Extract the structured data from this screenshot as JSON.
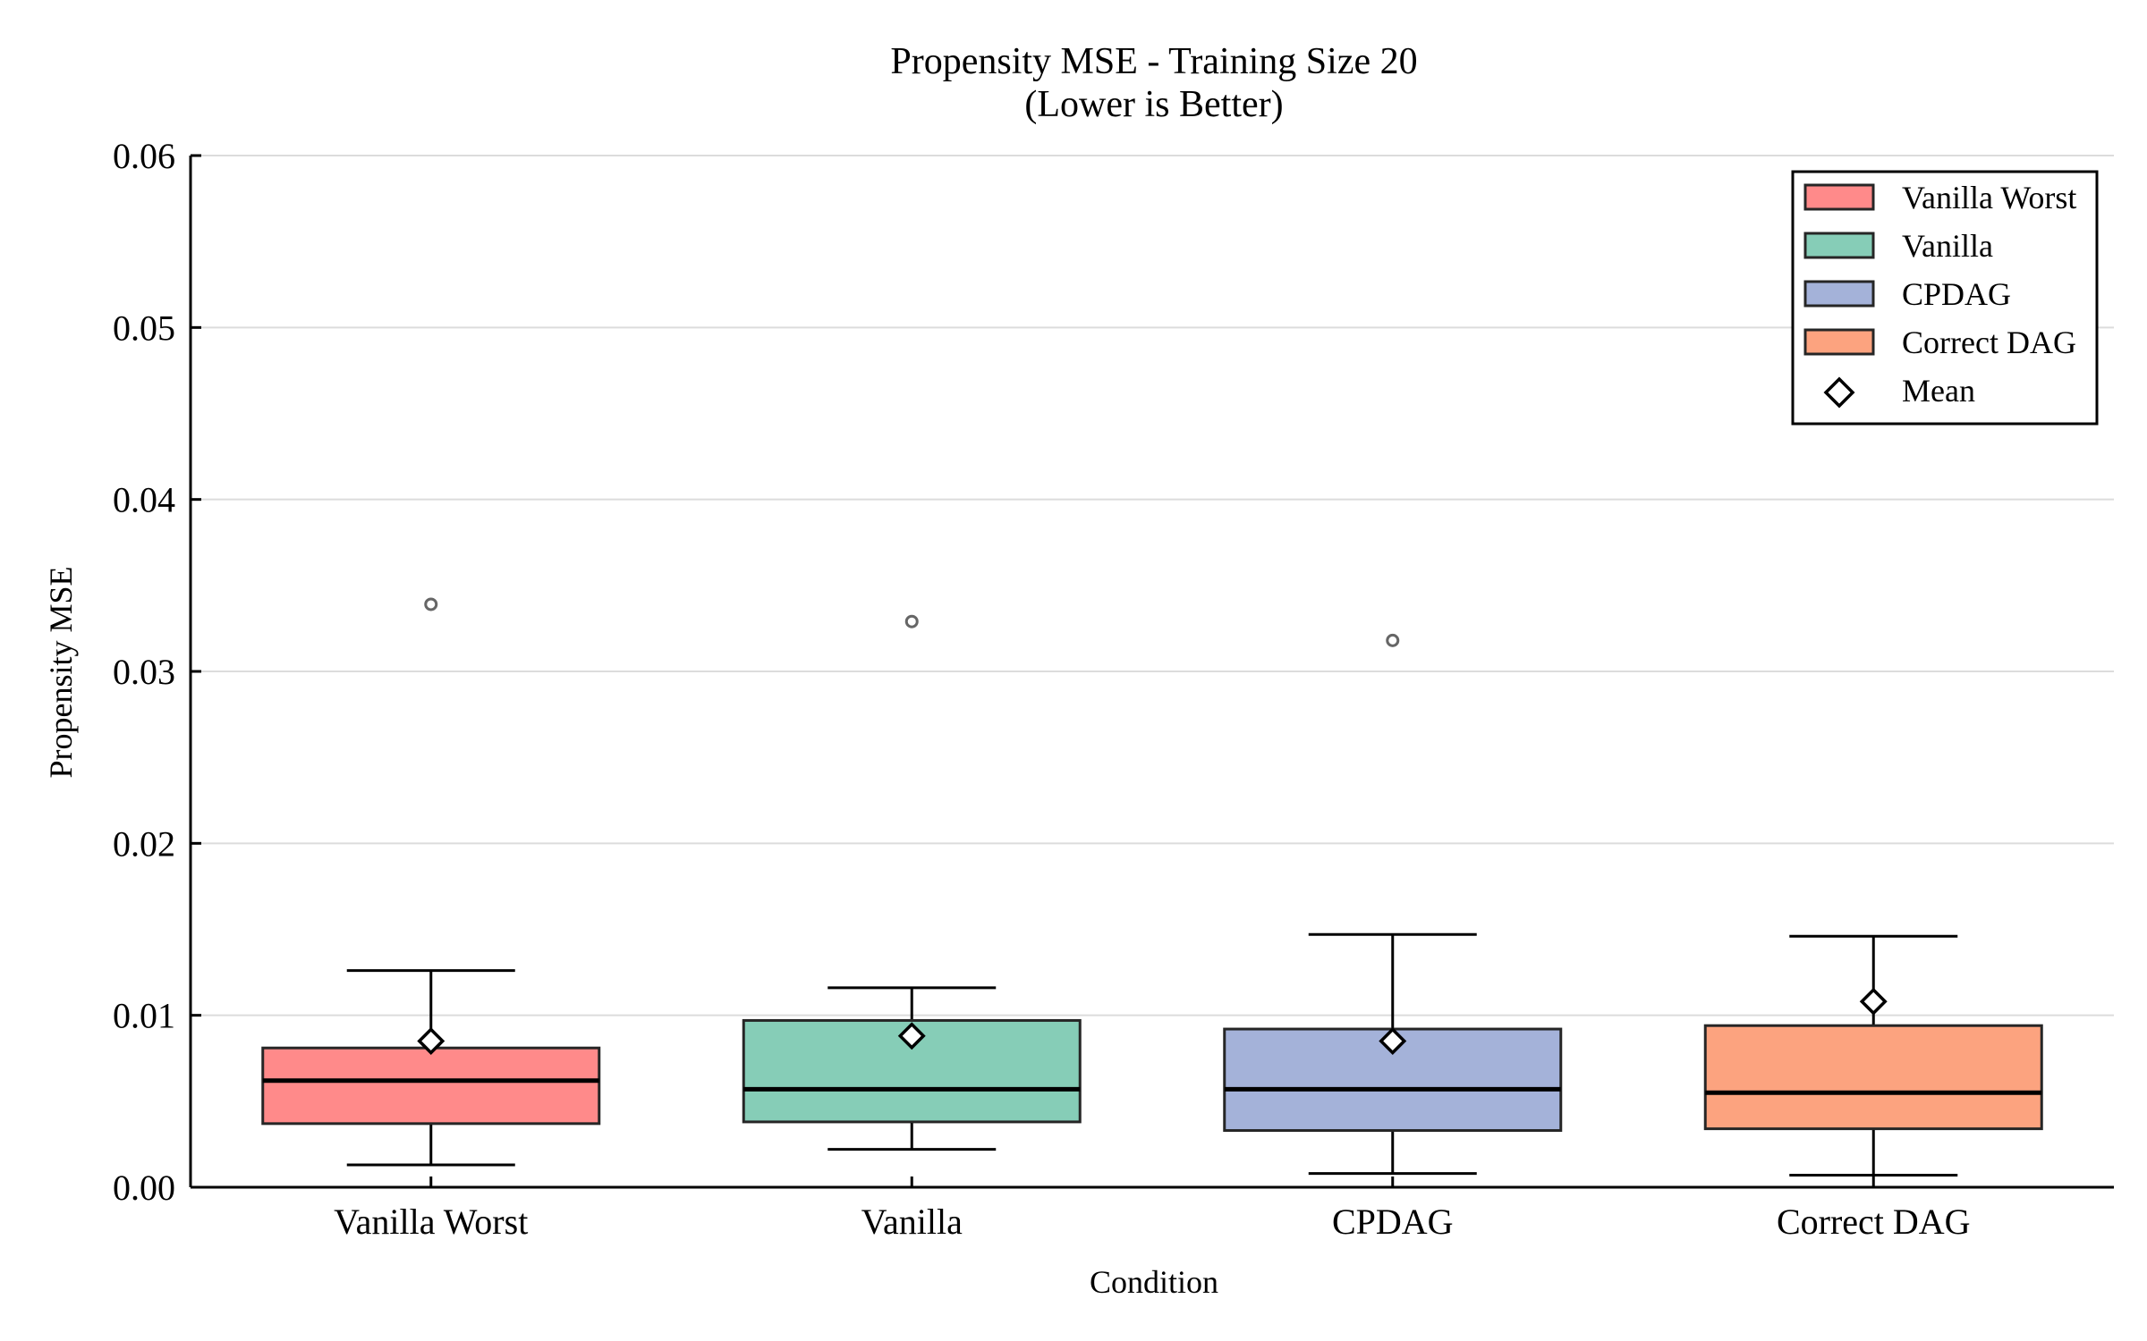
{
  "chart_data": {
    "type": "box",
    "title": "Propensity MSE - Training Size 20",
    "subtitle": "(Lower is Better)",
    "xlabel": "Condition",
    "ylabel": "Propensity MSE",
    "ylim": [
      0,
      0.06
    ],
    "yticks": [
      "0.00",
      "0.01",
      "0.02",
      "0.03",
      "0.04",
      "0.05",
      "0.06"
    ],
    "grid": "horizontal",
    "legend_position": "top-right",
    "categories": [
      "Vanilla Worst",
      "Vanilla",
      "CPDAG",
      "Correct DAG"
    ],
    "series": [
      {
        "name": "Vanilla Worst",
        "color": "#FF8A8A",
        "whisker_low": 0.0013,
        "q1": 0.0037,
        "median": 0.0062,
        "q3": 0.0081,
        "whisker_high": 0.0126,
        "mean": 0.0085,
        "outliers": [
          0.0339
        ]
      },
      {
        "name": "Vanilla",
        "color": "#86CDB7",
        "whisker_low": 0.0022,
        "q1": 0.0038,
        "median": 0.0057,
        "q3": 0.0097,
        "whisker_high": 0.0116,
        "mean": 0.0088,
        "outliers": [
          0.0329
        ]
      },
      {
        "name": "CPDAG",
        "color": "#A4B2D9",
        "whisker_low": 0.0008,
        "q1": 0.0033,
        "median": 0.0057,
        "q3": 0.0092,
        "whisker_high": 0.0147,
        "mean": 0.0085,
        "outliers": [
          0.0318
        ]
      },
      {
        "name": "Correct DAG",
        "color": "#FCA37F",
        "whisker_low": 0.0007,
        "q1": 0.0034,
        "median": 0.0055,
        "q3": 0.0094,
        "whisker_high": 0.0146,
        "mean": 0.0108,
        "outliers": []
      }
    ],
    "legend": [
      "Vanilla Worst",
      "Vanilla",
      "CPDAG",
      "Correct DAG",
      "Mean"
    ]
  }
}
